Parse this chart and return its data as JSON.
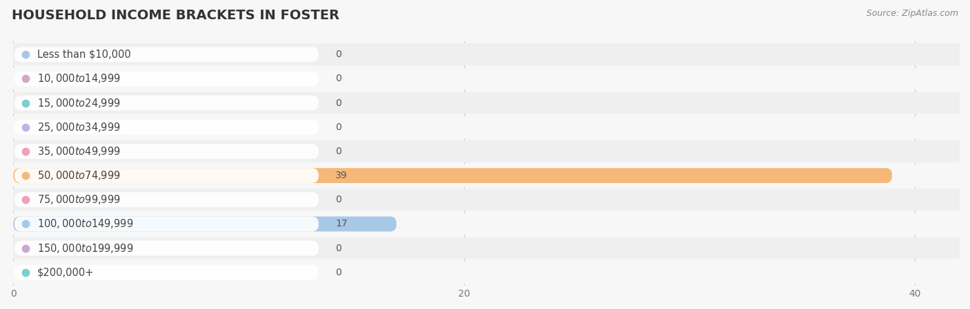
{
  "title": "HOUSEHOLD INCOME BRACKETS IN FOSTER",
  "source": "Source: ZipAtlas.com",
  "categories": [
    "Less than $10,000",
    "$10,000 to $14,999",
    "$15,000 to $24,999",
    "$25,000 to $34,999",
    "$35,000 to $49,999",
    "$50,000 to $74,999",
    "$75,000 to $99,999",
    "$100,000 to $149,999",
    "$150,000 to $199,999",
    "$200,000+"
  ],
  "values": [
    0,
    0,
    0,
    0,
    0,
    39,
    0,
    17,
    0,
    0
  ],
  "bar_colors": [
    "#a8c8e8",
    "#d4a8c8",
    "#7ecfcf",
    "#b8b8e8",
    "#f0a0b8",
    "#f5b87a",
    "#f0a0b8",
    "#a8c8e8",
    "#c8a8d8",
    "#7ecfcf"
  ],
  "background_color": "#f7f7f7",
  "row_bg_even": "#efefef",
  "row_bg_odd": "#f7f7f7",
  "xlim": [
    0,
    42
  ],
  "xticks": [
    0,
    20,
    40
  ],
  "title_fontsize": 14,
  "label_fontsize": 10.5,
  "value_fontsize": 10
}
